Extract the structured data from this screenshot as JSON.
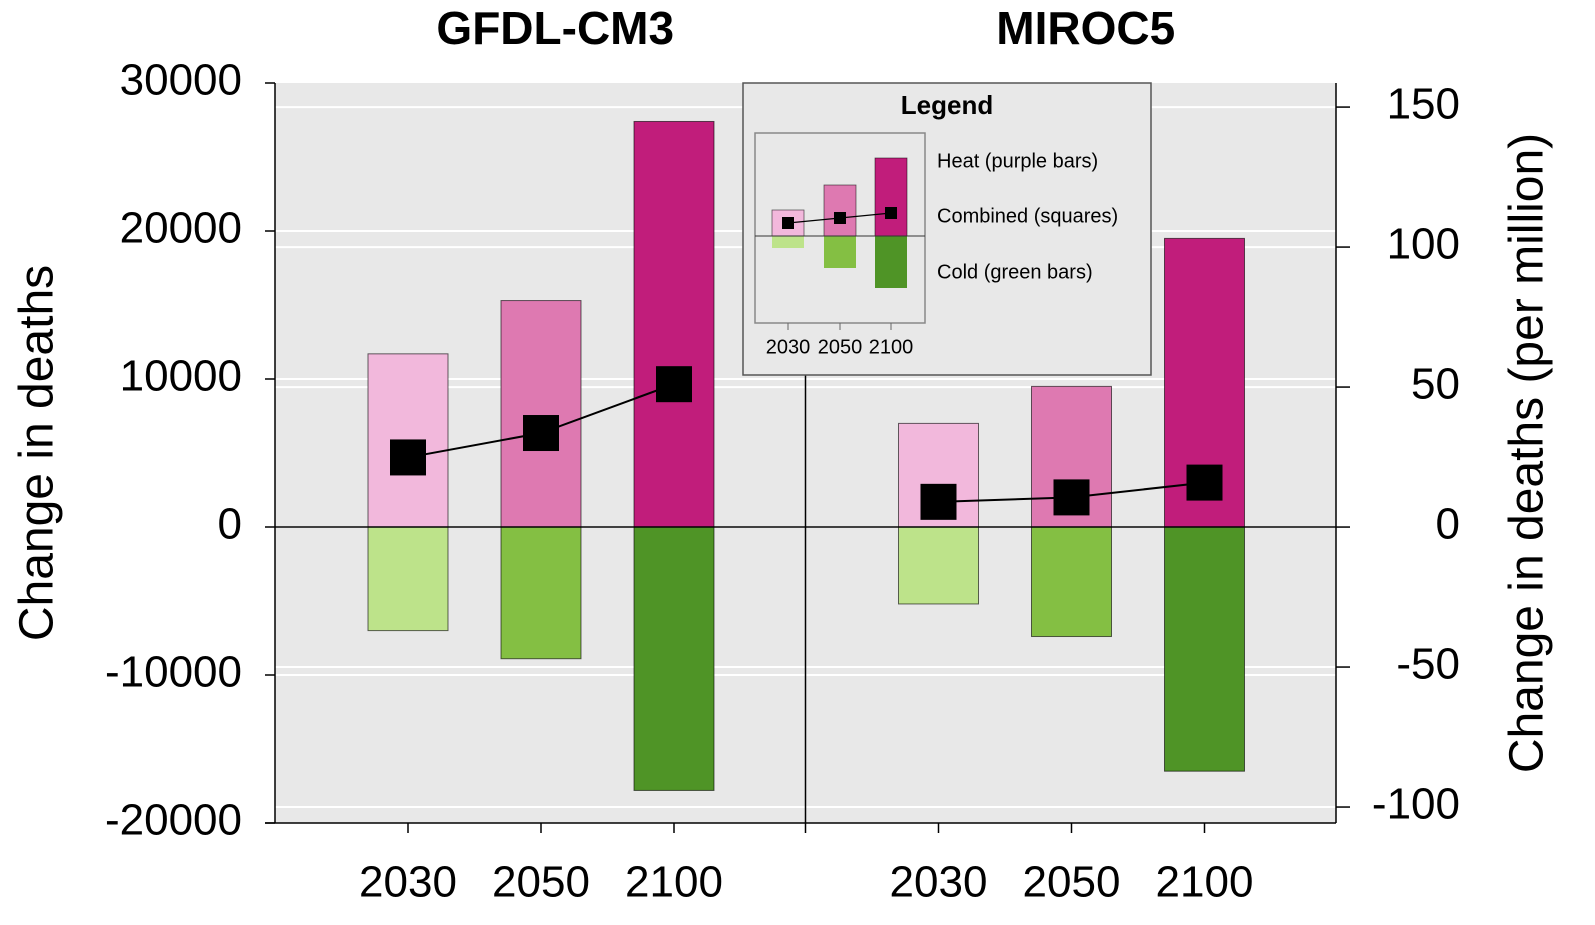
{
  "chart_data": {
    "type": "bar",
    "ylabel": "Change in deaths",
    "y2label": "Change in deaths (per million)",
    "ylim": [
      -20000,
      30000
    ],
    "yticks": [
      -20000,
      -10000,
      0,
      10000,
      20000,
      30000
    ],
    "y2lim": [
      -105.7,
      158.6
    ],
    "y2ticks": [
      -100,
      -50,
      0,
      50,
      100,
      150
    ],
    "grid": true,
    "series": [
      {
        "name": "Heat (purple bars)",
        "colors": [
          "#f2b8dc",
          "#de79b1",
          "#c11d7b"
        ]
      },
      {
        "name": "Combined (squares)",
        "color": "#000000"
      },
      {
        "name": "Cold (green bars)",
        "colors": [
          "#bde38a",
          "#84bf43",
          "#4f9426"
        ]
      }
    ],
    "legend": {
      "title": "Legend",
      "categories": [
        "2030",
        "2050",
        "2100"
      ]
    },
    "panels": [
      {
        "title": "GFDL-CM3",
        "categories": [
          "2030",
          "2050",
          "2100"
        ],
        "values": [
          [
            11700,
            15300,
            27400
          ],
          [
            4700,
            6350,
            9650
          ],
          [
            -7000,
            -8900,
            -17800
          ]
        ]
      },
      {
        "title": "MIROC5",
        "categories": [
          "2030",
          "2050",
          "2100"
        ],
        "values": [
          [
            7000,
            9500,
            19500
          ],
          [
            1700,
            2000,
            3000
          ],
          [
            -5200,
            -7400,
            -16500
          ]
        ]
      }
    ]
  }
}
